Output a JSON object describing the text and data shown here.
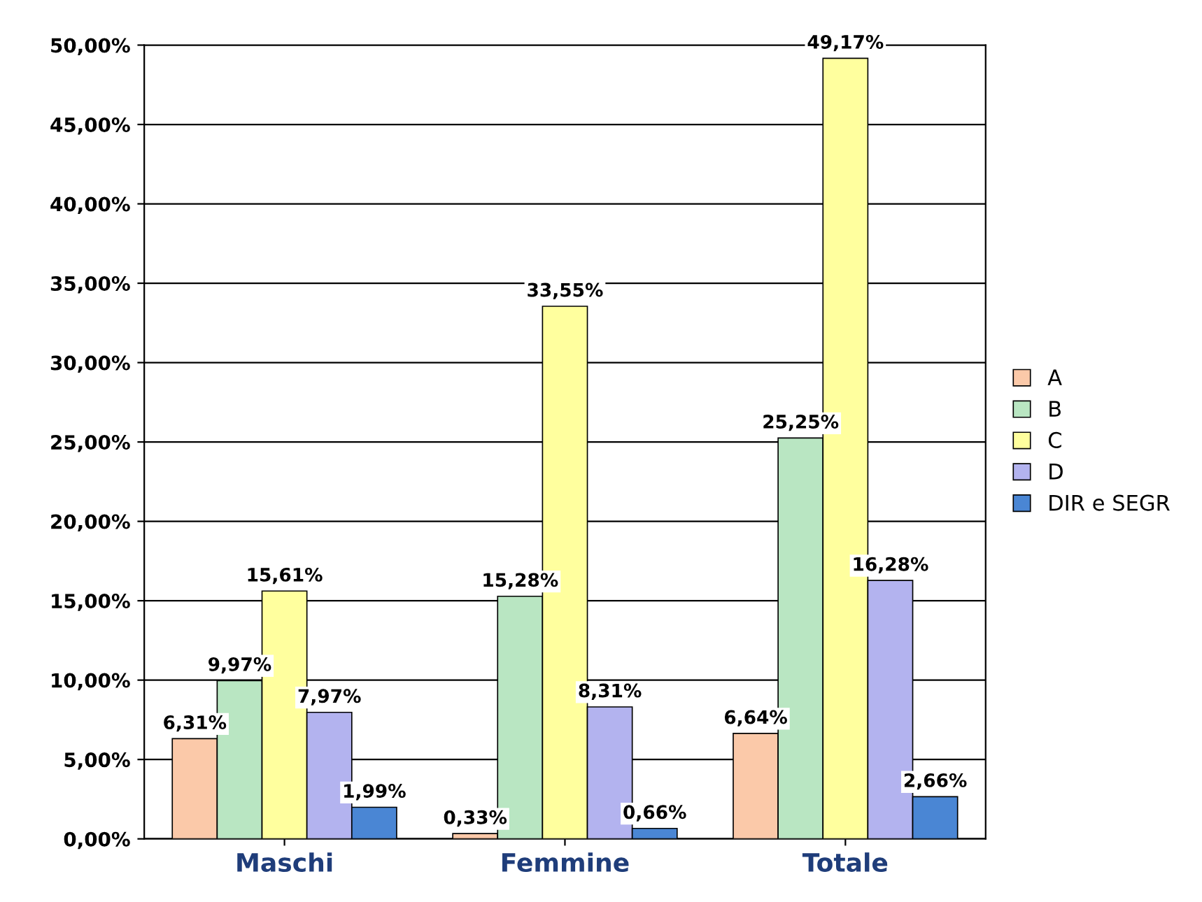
{
  "chart_data": {
    "type": "bar",
    "categories": [
      "Maschi",
      "Femmine",
      "Totale"
    ],
    "series": [
      {
        "name": "A",
        "color": "#fbc9a9",
        "values": [
          6.31,
          0.33,
          6.64
        ],
        "value_labels": [
          "6,31%",
          "0,33%",
          "6,64%"
        ]
      },
      {
        "name": "B",
        "color": "#b9e6c2",
        "values": [
          9.97,
          15.28,
          25.25
        ],
        "value_labels": [
          "9,97%",
          "15,28%",
          "25,25%"
        ]
      },
      {
        "name": "C",
        "color": "#ffff9e",
        "values": [
          15.61,
          33.55,
          49.17
        ],
        "value_labels": [
          "15,61%",
          "33,55%",
          "49,17%"
        ]
      },
      {
        "name": "D",
        "color": "#b3b3ef",
        "values": [
          7.97,
          8.31,
          16.28
        ],
        "value_labels": [
          "7,97%",
          "8,31%",
          "16,28%"
        ]
      },
      {
        "name": "DIR e SEGR",
        "color": "#4a86d4",
        "values": [
          1.99,
          0.66,
          2.66
        ],
        "value_labels": [
          "1,99%",
          "0,66%",
          "2,66%"
        ]
      }
    ],
    "ylim": [
      0,
      50
    ],
    "yticks": [
      {
        "value": 0,
        "label": "0,00%"
      },
      {
        "value": 5,
        "label": "5,00%"
      },
      {
        "value": 10,
        "label": "10,00%"
      },
      {
        "value": 15,
        "label": "15,00%"
      },
      {
        "value": 20,
        "label": "20,00%"
      },
      {
        "value": 25,
        "label": "25,00%"
      },
      {
        "value": 30,
        "label": "30,00%"
      },
      {
        "value": 35,
        "label": "35,00%"
      },
      {
        "value": 40,
        "label": "40,00%"
      },
      {
        "value": 45,
        "label": "45,00%"
      },
      {
        "value": 50,
        "label": "50,00%"
      }
    ],
    "grid": "y",
    "legend": "right"
  }
}
